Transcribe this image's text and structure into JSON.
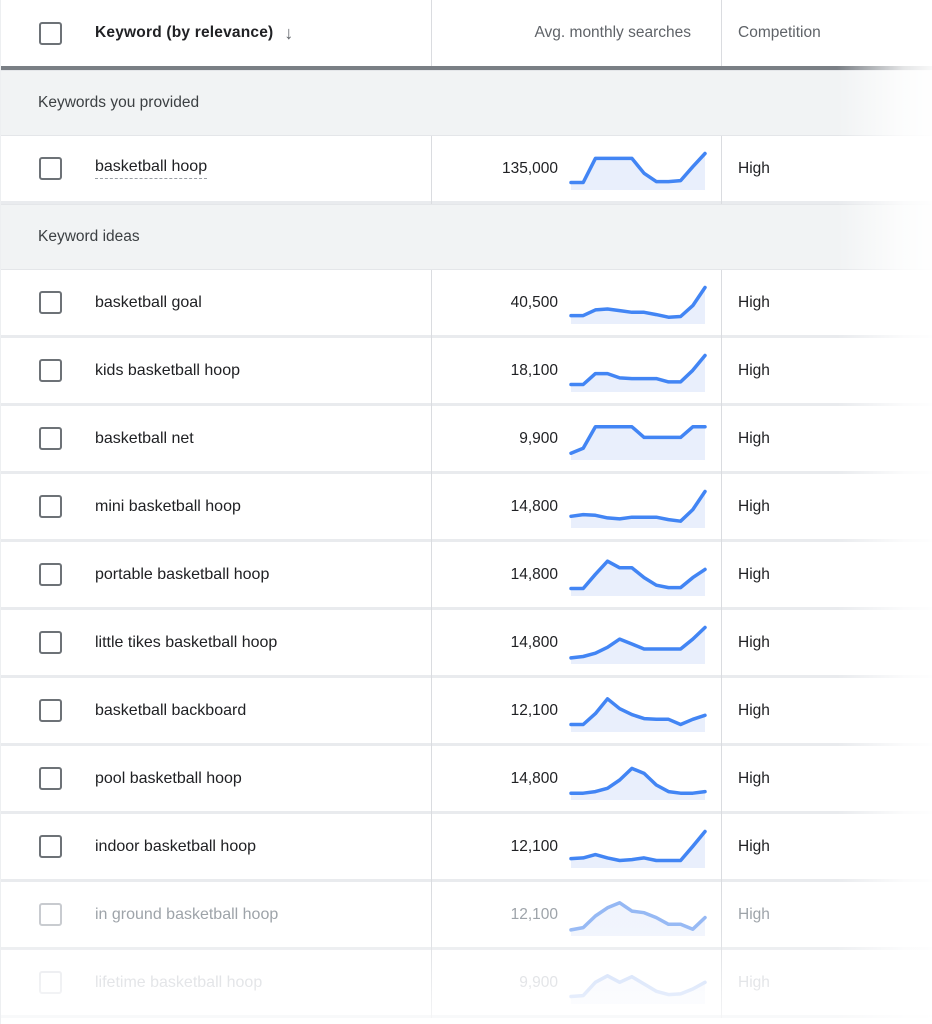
{
  "header": {
    "keyword_label": "Keyword (by relevance)",
    "sort_arrow": "↓",
    "avg_label": "Avg. monthly searches",
    "competition_label": "Competition"
  },
  "colors": {
    "accent_blue": "#4285f4",
    "spark_fill": "#e9effc",
    "fade1_stroke": "#92b6f4",
    "fade1_fill": "#f0f4fd",
    "fade2_stroke": "#c7d8f8",
    "fade2_fill": "#f6f8fe",
    "header_band": "#7a7f85",
    "section_bg": "#f1f3f4"
  },
  "rows": [
    {
      "type": "section",
      "label": "Keywords you provided"
    },
    {
      "type": "keyword",
      "keyword": "basketball hoop",
      "underline": true,
      "searches": "135,000",
      "competition": "High",
      "fade": 0,
      "trend": [
        0.12,
        0.12,
        0.85,
        0.85,
        0.85,
        0.85,
        0.4,
        0.15,
        0.15,
        0.18,
        0.6,
        1.0
      ]
    },
    {
      "type": "section",
      "label": "Keyword ideas"
    },
    {
      "type": "keyword",
      "keyword": "basketball goal",
      "underline": false,
      "searches": "40,500",
      "competition": "High",
      "fade": 0,
      "trend": [
        0.15,
        0.15,
        0.32,
        0.35,
        0.3,
        0.25,
        0.25,
        0.18,
        0.1,
        0.12,
        0.45,
        1.0
      ]
    },
    {
      "type": "keyword",
      "keyword": "kids basketball hoop",
      "underline": false,
      "searches": "18,100",
      "competition": "High",
      "fade": 0,
      "trend": [
        0.12,
        0.12,
        0.45,
        0.45,
        0.32,
        0.3,
        0.3,
        0.3,
        0.2,
        0.2,
        0.55,
        1.0
      ]
    },
    {
      "type": "keyword",
      "keyword": "basketball net",
      "underline": false,
      "searches": "9,900",
      "competition": "High",
      "fade": 0,
      "trend": [
        0.1,
        0.25,
        0.9,
        0.9,
        0.9,
        0.9,
        0.58,
        0.58,
        0.58,
        0.58,
        0.9,
        0.9
      ]
    },
    {
      "type": "keyword",
      "keyword": "mini basketball hoop",
      "underline": false,
      "searches": "14,800",
      "competition": "High",
      "fade": 0,
      "trend": [
        0.25,
        0.3,
        0.28,
        0.2,
        0.17,
        0.22,
        0.22,
        0.22,
        0.15,
        0.1,
        0.45,
        1.0
      ]
    },
    {
      "type": "keyword",
      "keyword": "portable basketball hoop",
      "underline": false,
      "searches": "14,800",
      "competition": "High",
      "fade": 0,
      "trend": [
        0.12,
        0.12,
        0.55,
        0.95,
        0.75,
        0.75,
        0.45,
        0.22,
        0.15,
        0.15,
        0.45,
        0.7
      ]
    },
    {
      "type": "keyword",
      "keyword": "little tikes basketball hoop",
      "underline": false,
      "searches": "14,800",
      "competition": "High",
      "fade": 0,
      "trend": [
        0.08,
        0.12,
        0.22,
        0.4,
        0.65,
        0.5,
        0.35,
        0.35,
        0.35,
        0.35,
        0.65,
        1.0
      ]
    },
    {
      "type": "keyword",
      "keyword": "basketball backboard",
      "underline": false,
      "searches": "12,100",
      "competition": "High",
      "fade": 0,
      "trend": [
        0.12,
        0.12,
        0.45,
        0.9,
        0.6,
        0.42,
        0.3,
        0.28,
        0.28,
        0.12,
        0.28,
        0.4
      ]
    },
    {
      "type": "keyword",
      "keyword": "pool basketball hoop",
      "underline": false,
      "searches": "14,800",
      "competition": "High",
      "fade": 0,
      "trend": [
        0.1,
        0.1,
        0.15,
        0.25,
        0.5,
        0.85,
        0.7,
        0.35,
        0.15,
        0.1,
        0.1,
        0.15
      ]
    },
    {
      "type": "keyword",
      "keyword": "indoor basketball hoop",
      "underline": false,
      "searches": "12,100",
      "competition": "High",
      "fade": 0,
      "trend": [
        0.18,
        0.2,
        0.3,
        0.2,
        0.12,
        0.15,
        0.2,
        0.12,
        0.12,
        0.12,
        0.55,
        1.0
      ]
    },
    {
      "type": "keyword",
      "keyword": "in ground basketball hoop",
      "underline": false,
      "searches": "12,100",
      "competition": "High",
      "fade": 1,
      "trend": [
        0.08,
        0.15,
        0.5,
        0.75,
        0.9,
        0.65,
        0.6,
        0.45,
        0.25,
        0.25,
        0.1,
        0.45
      ]
    },
    {
      "type": "keyword",
      "keyword": "lifetime basketball hoop",
      "underline": false,
      "searches": "9,900",
      "competition": "High",
      "fade": 2,
      "trend": [
        0.12,
        0.15,
        0.55,
        0.75,
        0.55,
        0.72,
        0.5,
        0.28,
        0.18,
        0.2,
        0.35,
        0.55
      ]
    }
  ]
}
